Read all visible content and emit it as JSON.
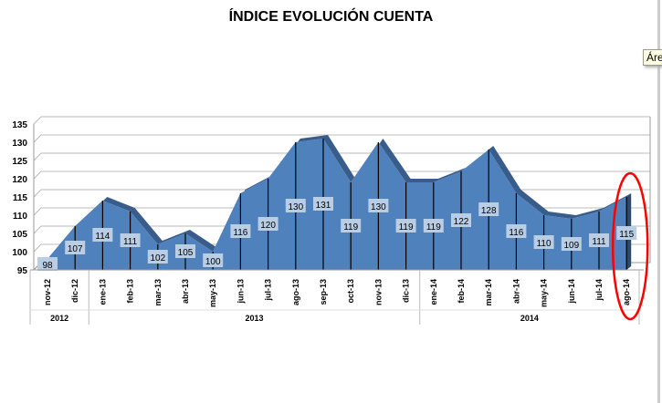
{
  "tooltip": "Área",
  "chart_data": {
    "type": "area",
    "title": "ÍNDICE EVOLUCIÓN CUENTA",
    "xlabel": "",
    "ylabel": "",
    "ylim": [
      95,
      135
    ],
    "yticks": [
      95,
      100,
      105,
      110,
      115,
      120,
      125,
      130,
      135
    ],
    "grid": true,
    "categories": [
      "nov-12",
      "dic-12",
      "ene-13",
      "feb-13",
      "mar-13",
      "abr-13",
      "may-13",
      "jun-13",
      "jul-13",
      "ago-13",
      "sep-13",
      "oct-13",
      "nov-13",
      "dic-13",
      "ene-14",
      "feb-14",
      "mar-14",
      "abr-14",
      "may-14",
      "jun-14",
      "jul-14",
      "ago-14"
    ],
    "values": [
      98,
      107,
      114,
      111,
      102,
      105,
      100,
      116,
      120,
      130,
      131,
      119,
      130,
      119,
      119,
      122,
      128,
      116,
      110,
      109,
      111,
      115
    ],
    "year_groups": [
      {
        "label": "2012",
        "count": 2
      },
      {
        "label": "2013",
        "count": 12
      },
      {
        "label": "2014",
        "count": 8
      }
    ],
    "highlight": {
      "category": "ago-14",
      "color": "#ff0000"
    },
    "colors": {
      "area": "#4f81bd",
      "top": "#385d8a",
      "label_bg": "#b9cde5"
    }
  }
}
